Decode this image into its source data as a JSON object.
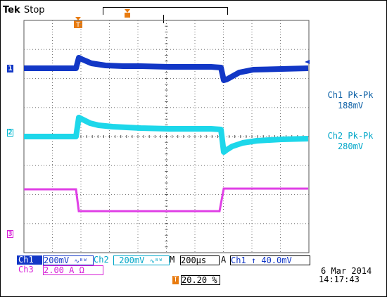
{
  "header": {
    "brand": "Tek",
    "state": "Stop"
  },
  "markers": {
    "ch1": "1",
    "ch2": "2",
    "ch3": "3",
    "trigger": "T"
  },
  "measurements": {
    "ch1_pkpk_label": "Ch1 Pk-Pk",
    "ch1_pkpk_value": "188mV",
    "ch2_pkpk_label": "Ch2 Pk-Pk",
    "ch2_pkpk_value": "280mV"
  },
  "status_bar": {
    "ch1_label": "Ch1",
    "ch1_scale": "200mV",
    "ch1_bw": "∿ᴮᵂ",
    "ch2_label": "Ch2",
    "ch2_scale": "200mV",
    "ch2_bw": "∿ᴮᵂ",
    "timebase_label": "M",
    "timebase_value": "200µs",
    "trigger_mode": "A",
    "trigger_text": "Ch1  ↑  40.0mV",
    "ch3_label": "Ch3",
    "ch3_scale": "2.00 A Ω",
    "trigger_position": "20.20 %",
    "date": "6 Mar  2014",
    "time": "14:17:43"
  },
  "colors": {
    "ch1": "#1237c6",
    "ch2": "#19d9e9",
    "ch3": "#d91fe0",
    "trigger": "#e87b10"
  }
}
